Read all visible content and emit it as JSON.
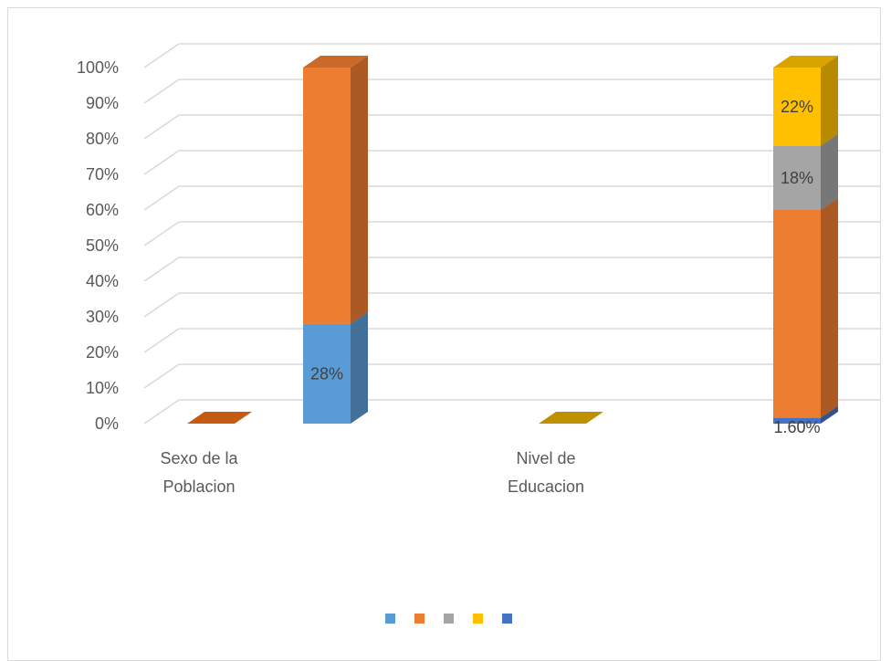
{
  "chart_data": {
    "type": "bar",
    "subtype": "3d-stacked-100-percent",
    "title": "",
    "xlabel": "",
    "ylabel": "",
    "ylim": [
      0,
      100
    ],
    "yticks": [
      "0%",
      "10%",
      "20%",
      "30%",
      "40%",
      "50%",
      "60%",
      "70%",
      "80%",
      "90%",
      "100%"
    ],
    "grid": true,
    "legend_position": "bottom",
    "category_groups": [
      {
        "label": "Sexo de la Poblacion",
        "label_lines": [
          "Sexo de la",
          "Poblacion"
        ]
      },
      {
        "label": "Nivel de Educacion",
        "label_lines": [
          "Nivel de",
          "Educacion"
        ]
      }
    ],
    "series": [
      {
        "color": "#5b9bd5"
      },
      {
        "color": "#ed7d31"
      },
      {
        "color": "#a5a5a5"
      },
      {
        "color": "#ffc000"
      },
      {
        "color": "#4472c4"
      }
    ],
    "bars": [
      {
        "group": 0,
        "slot": 0,
        "segments": []
      },
      {
        "group": 0,
        "slot": 1,
        "segments": [
          {
            "series": 0,
            "value": 28,
            "label": "28%"
          },
          {
            "series": 1,
            "value": 72,
            "label": ""
          }
        ]
      },
      {
        "group": 1,
        "slot": 0,
        "segments": []
      },
      {
        "group": 1,
        "slot": 1,
        "segments": [
          {
            "series": 4,
            "value": 1.6,
            "label": "1.60%"
          },
          {
            "series": 1,
            "value": 58.4,
            "label": ""
          },
          {
            "series": 2,
            "value": 18,
            "label": "18%"
          },
          {
            "series": 3,
            "value": 22,
            "label": "22%"
          }
        ]
      }
    ],
    "empty_bar_colors": [
      "#c55a11",
      "#bf9000"
    ]
  }
}
